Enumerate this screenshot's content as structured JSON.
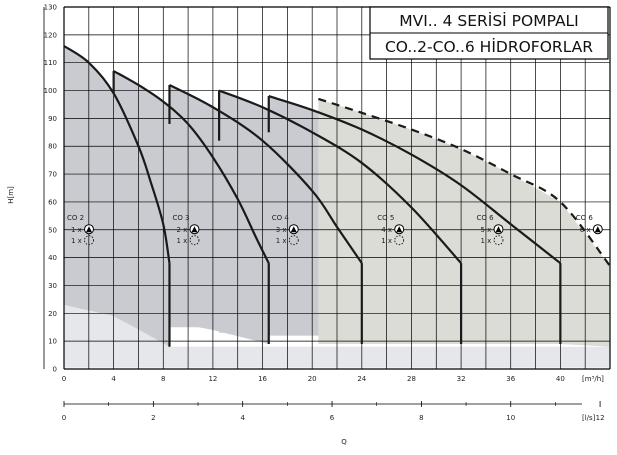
{
  "chart_data": {
    "type": "area",
    "title_lines": [
      "MVI.. 4 SERİSİ POMPALI",
      "CO..2-CO..6 HİDROFORLAR"
    ],
    "ylabel": "H[m]",
    "xlabel": "Q",
    "x_unit_m3h": "[m³/h]",
    "x_unit_ls": "[l/s]",
    "ylim": [
      0,
      130
    ],
    "xlim_m3h": [
      0,
      44
    ],
    "y_ticks": [
      0,
      10,
      20,
      30,
      40,
      50,
      60,
      70,
      80,
      90,
      100,
      110,
      120,
      130
    ],
    "x_ticks_m3h": [
      0,
      4,
      8,
      12,
      16,
      20,
      24,
      28,
      32,
      36,
      40
    ],
    "x_ticks_ls": [
      0,
      2,
      4,
      6,
      8,
      10,
      12
    ],
    "grid": true,
    "series": [
      {
        "name": "CO 2",
        "pumps": "1 x",
        "standby": "1 x",
        "curve": [
          [
            0,
            116
          ],
          [
            2,
            110
          ],
          [
            4,
            99
          ],
          [
            6,
            80
          ],
          [
            7,
            67
          ],
          [
            8,
            52
          ],
          [
            8.5,
            38
          ]
        ],
        "lower_limit": [
          [
            0,
            23
          ],
          [
            4,
            19
          ],
          [
            8.5,
            8
          ]
        ]
      },
      {
        "name": "CO 3",
        "pumps": "2 x",
        "standby": "1 x",
        "curve": [
          [
            4,
            107
          ],
          [
            6,
            102
          ],
          [
            8,
            96
          ],
          [
            10,
            88
          ],
          [
            12,
            76
          ],
          [
            14,
            61
          ],
          [
            15.5,
            47
          ],
          [
            16.5,
            38
          ]
        ],
        "lower_limit": [
          [
            8.5,
            17
          ],
          [
            12,
            14
          ],
          [
            16.5,
            9
          ]
        ]
      },
      {
        "name": "CO 4",
        "pumps": "3 x",
        "standby": "1 x",
        "curve": [
          [
            8.5,
            102
          ],
          [
            12,
            94
          ],
          [
            16,
            82
          ],
          [
            20,
            64
          ],
          [
            22,
            51
          ],
          [
            24,
            38
          ]
        ],
        "lower_limit": [
          [
            16.5,
            15
          ],
          [
            20,
            13
          ],
          [
            24,
            9
          ]
        ]
      },
      {
        "name": "CO 5",
        "pumps": "4 x",
        "standby": "1 x",
        "curve": [
          [
            12.5,
            100
          ],
          [
            16,
            94
          ],
          [
            20,
            85
          ],
          [
            24,
            74
          ],
          [
            28,
            58
          ],
          [
            32,
            38
          ]
        ],
        "lower_limit": [
          [
            24,
            13
          ],
          [
            28,
            12
          ],
          [
            32,
            9
          ]
        ]
      },
      {
        "name": "CO 6",
        "pumps": "5 x",
        "standby": "1 x",
        "curve": [
          [
            16.5,
            98
          ],
          [
            20,
            93
          ],
          [
            24,
            86
          ],
          [
            28,
            77
          ],
          [
            32,
            66
          ],
          [
            36,
            52
          ],
          [
            40,
            38
          ]
        ],
        "lower_limit": [
          [
            32,
            12
          ],
          [
            36,
            10
          ],
          [
            40,
            9
          ]
        ]
      },
      {
        "name": "CO 6",
        "pumps": "6 x",
        "dashed": true,
        "curve": [
          [
            20.5,
            97
          ],
          [
            24,
            92
          ],
          [
            28,
            86
          ],
          [
            32,
            79
          ],
          [
            36,
            70
          ],
          [
            40,
            60
          ],
          [
            44,
            37
          ]
        ],
        "lower_limit": [
          [
            40,
            9
          ],
          [
            44,
            8
          ]
        ]
      }
    ]
  }
}
